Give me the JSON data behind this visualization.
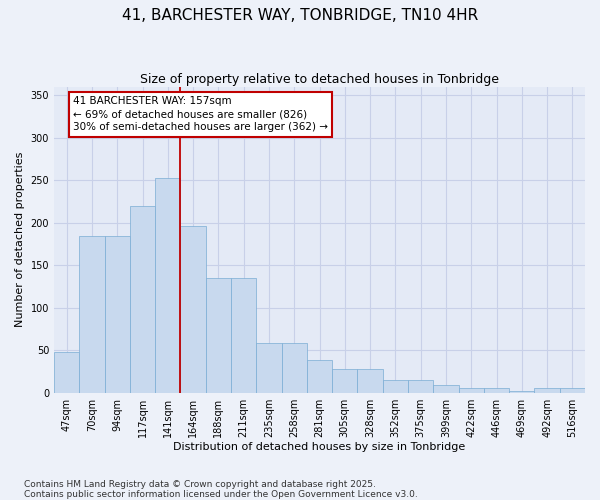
{
  "title": "41, BARCHESTER WAY, TONBRIDGE, TN10 4HR",
  "subtitle": "Size of property relative to detached houses in Tonbridge",
  "xlabel": "Distribution of detached houses by size in Tonbridge",
  "ylabel": "Number of detached properties",
  "categories": [
    "47sqm",
    "70sqm",
    "94sqm",
    "117sqm",
    "141sqm",
    "164sqm",
    "188sqm",
    "211sqm",
    "235sqm",
    "258sqm",
    "281sqm",
    "305sqm",
    "328sqm",
    "352sqm",
    "375sqm",
    "399sqm",
    "422sqm",
    "446sqm",
    "469sqm",
    "492sqm",
    "516sqm"
  ],
  "bar_values": [
    48,
    184,
    184,
    220,
    253,
    196,
    135,
    135,
    58,
    58,
    38,
    28,
    28,
    15,
    15,
    9,
    5,
    5,
    2,
    5,
    6
  ],
  "bar_color": "#c8d9ee",
  "bar_edge_color": "#7aacd4",
  "vline_pos": 4.5,
  "vline_color": "#c00000",
  "annotation_line1": "41 BARCHESTER WAY: 157sqm",
  "annotation_line2": "← 69% of detached houses are smaller (826)",
  "annotation_line3": "30% of semi-detached houses are larger (362) →",
  "annot_box_facecolor": "#ffffff",
  "annot_box_edgecolor": "#c00000",
  "ylim": [
    0,
    360
  ],
  "yticks": [
    0,
    50,
    100,
    150,
    200,
    250,
    300,
    350
  ],
  "bg_color": "#edf1f9",
  "plot_bg_color": "#e4eaf6",
  "grid_color": "#c8d0e8",
  "title_fontsize": 11,
  "subtitle_fontsize": 9,
  "axis_label_fontsize": 8,
  "tick_fontsize": 7,
  "annot_fontsize": 7.5,
  "footer_fontsize": 6.5,
  "footer": "Contains HM Land Registry data © Crown copyright and database right 2025.\nContains public sector information licensed under the Open Government Licence v3.0."
}
